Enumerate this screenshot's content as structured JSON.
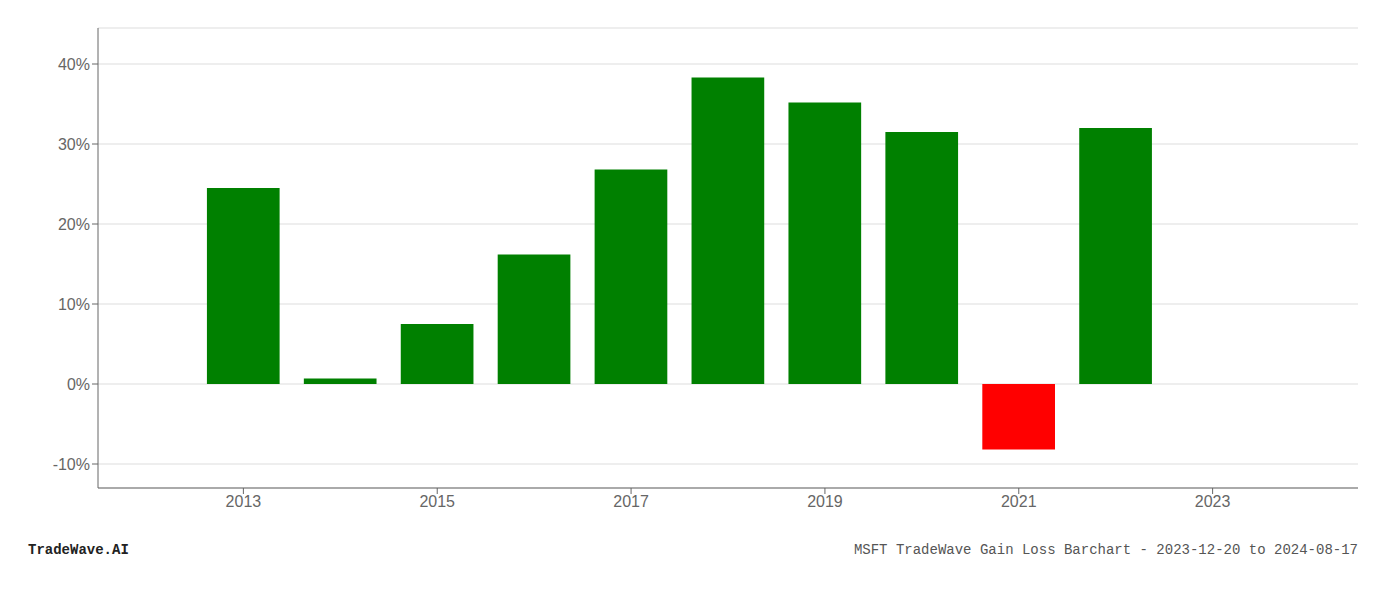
{
  "chart_data": {
    "type": "bar",
    "x": [
      2013,
      2014,
      2015,
      2016,
      2017,
      2018,
      2019,
      2020,
      2021,
      2022
    ],
    "values": [
      0.245,
      0.007,
      0.075,
      0.162,
      0.268,
      0.383,
      0.352,
      0.315,
      -0.082,
      0.32
    ],
    "colors": [
      "#008000",
      "#008000",
      "#008000",
      "#008000",
      "#008000",
      "#008000",
      "#008000",
      "#008000",
      "#ff0000",
      "#008000"
    ],
    "xlim": [
      2011.5,
      2024.5
    ],
    "xticks": [
      2013,
      2015,
      2017,
      2019,
      2021,
      2023
    ],
    "ylim": [
      -0.13,
      0.445
    ],
    "yticks": [
      {
        "value": -0.1,
        "label": "-10%"
      },
      {
        "value": 0.0,
        "label": "0%"
      },
      {
        "value": 0.1,
        "label": "10%"
      },
      {
        "value": 0.2,
        "label": "20%"
      },
      {
        "value": 0.3,
        "label": "30%"
      },
      {
        "value": 0.4,
        "label": "40%"
      }
    ],
    "grid": true,
    "annotations": [
      "TradeWave.AI",
      "MSFT TradeWave Gain Loss Barchart - 2023-12-20 to 2024-08-17"
    ]
  }
}
